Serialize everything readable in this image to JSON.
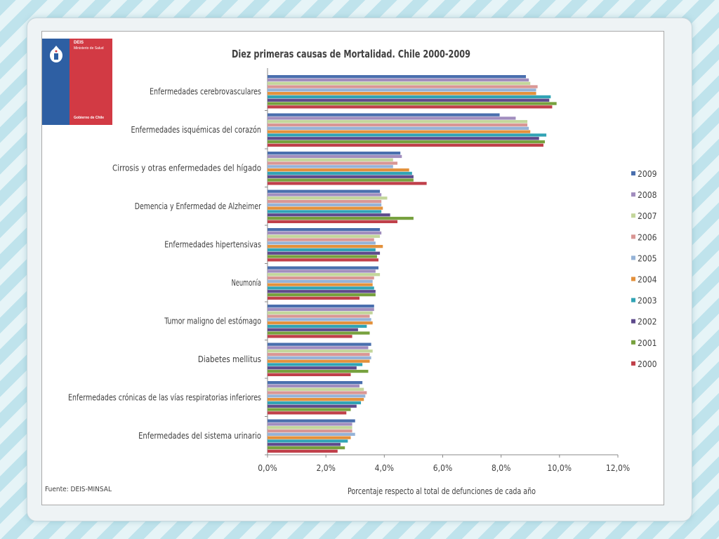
{
  "logo": {
    "org": "DEIS",
    "ministry": "Ministerio de Salud",
    "government": "Gobierno de Chile"
  },
  "source_note": "Fuente: DEIS-MINSAL",
  "chart_data": {
    "type": "bar",
    "orientation": "horizontal",
    "title": "Diez primeras causas de Mortalidad. Chile 2000-2009",
    "xlabel": "Porcentaje respecto al total de defunciones de cada año",
    "ylabel": "",
    "xlim": [
      0,
      12
    ],
    "x_ticks": [
      "0,0%",
      "2,0%",
      "4,0%",
      "6,0%",
      "8,0%",
      "10,0%",
      "12,0%"
    ],
    "grid": false,
    "legend_position": "right",
    "categories": [
      "Enfermedades cerebrovasculares",
      "Enfermedades isquémicas del corazón",
      "Cirrosis y otras enfermedades del hígado",
      "Demencia y Enfermedad de Alzheimer",
      "Enfermedades hipertensivas",
      "Neumonía",
      "Tumor maligno del estómago",
      "Diabetes mellitus",
      "Enfermedades crónicas de las vías respiratorias inferiores",
      "Enfermedades del sistema urinario"
    ],
    "series": [
      {
        "name": "2009",
        "color": "#4a6fae",
        "values": [
          8.85,
          7.95,
          4.55,
          3.85,
          3.85,
          3.8,
          3.65,
          3.55,
          3.25,
          3.0
        ]
      },
      {
        "name": "2008",
        "color": "#a18dbe",
        "values": [
          8.95,
          8.5,
          4.6,
          3.9,
          3.9,
          3.7,
          3.65,
          3.45,
          3.15,
          2.9
        ]
      },
      {
        "name": "2007",
        "color": "#c3d69b",
        "values": [
          9.0,
          8.9,
          4.3,
          4.1,
          3.85,
          3.85,
          3.6,
          3.6,
          3.3,
          2.9
        ]
      },
      {
        "name": "2006",
        "color": "#d99694",
        "values": [
          9.25,
          8.9,
          4.45,
          3.9,
          3.65,
          3.65,
          3.5,
          3.5,
          3.4,
          2.9
        ]
      },
      {
        "name": "2005",
        "color": "#95b3d7",
        "values": [
          9.2,
          8.95,
          4.3,
          3.9,
          3.7,
          3.6,
          3.55,
          3.55,
          3.35,
          3.0
        ]
      },
      {
        "name": "2004",
        "color": "#e3913c",
        "values": [
          9.2,
          9.0,
          4.85,
          3.95,
          3.95,
          3.6,
          3.6,
          3.5,
          3.3,
          2.85
        ]
      },
      {
        "name": "2003",
        "color": "#31a3b5",
        "values": [
          9.7,
          9.55,
          4.95,
          3.9,
          3.7,
          3.65,
          3.4,
          3.25,
          3.2,
          2.75
        ]
      },
      {
        "name": "2002",
        "color": "#5e4a8c",
        "values": [
          9.65,
          9.3,
          5.0,
          4.2,
          3.85,
          3.7,
          3.1,
          3.05,
          3.05,
          2.5
        ]
      },
      {
        "name": "2001",
        "color": "#77a13e",
        "values": [
          9.9,
          9.5,
          5.0,
          5.0,
          3.75,
          3.7,
          3.5,
          3.45,
          2.85,
          2.65
        ]
      },
      {
        "name": "2000",
        "color": "#c0404a",
        "values": [
          9.75,
          9.45,
          5.45,
          4.45,
          3.8,
          3.15,
          2.9,
          2.85,
          2.7,
          2.4
        ]
      }
    ]
  }
}
